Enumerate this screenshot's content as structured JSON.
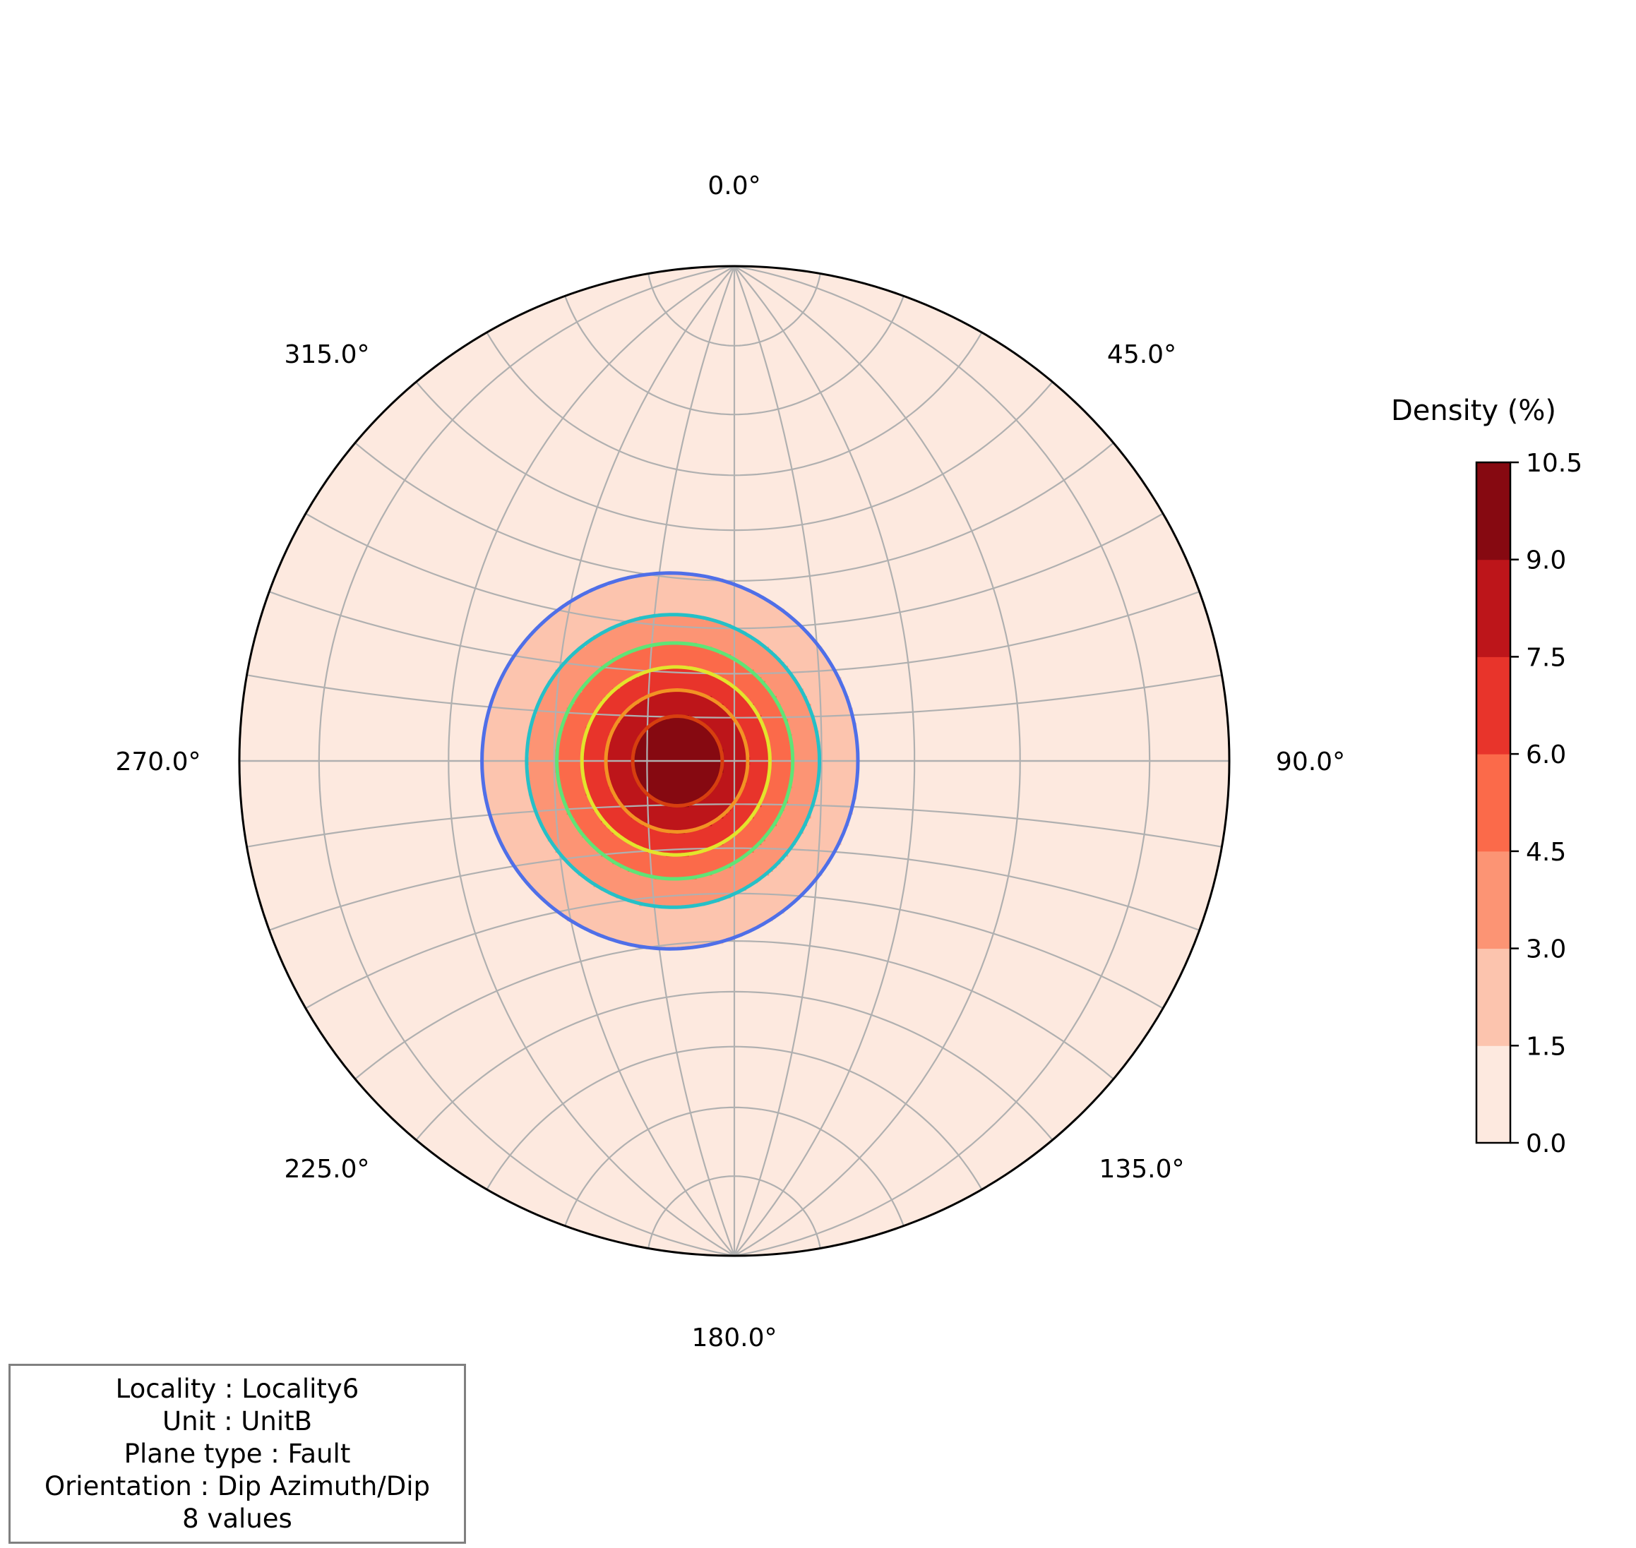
{
  "chart_data": {
    "type": "stereonet density contour",
    "azimuth_labels": [
      "0.0°",
      "45.0°",
      "90.0°",
      "135.0°",
      "180.0°",
      "225.0°",
      "270.0°",
      "315.0°"
    ],
    "azimuths_deg": [
      0,
      45,
      90,
      135,
      180,
      225,
      270,
      315
    ],
    "density_peak": {
      "dip_azimuth_deg": 270,
      "dip_deg": 13
    },
    "contour_levels_percent": [
      0.0,
      1.5,
      3.0,
      4.5,
      6.0,
      7.5,
      9.0,
      10.5
    ],
    "fill_colors": [
      "#fde9df",
      "#fcc4ae",
      "#fc9474",
      "#fb6a4a",
      "#e8342b",
      "#bd151a",
      "#860911"
    ],
    "line_colors": [
      "#4f6fe8",
      "#25c0c7",
      "#5fe476",
      "#e3e42c",
      "#f29324",
      "#d63f0f"
    ],
    "colorbar": {
      "title": "Density (%)",
      "tick_labels": [
        "0.0",
        "1.5",
        "3.0",
        "4.5",
        "6.0",
        "7.5",
        "9.0",
        "10.5"
      ]
    },
    "grid": true
  },
  "info": {
    "locality": "Locality : Locality6",
    "unit": "Unit : UnitB",
    "plane_type": "Plane type : Fault",
    "orientation": "Orientation : Dip Azimuth/Dip",
    "count": "8 values"
  }
}
